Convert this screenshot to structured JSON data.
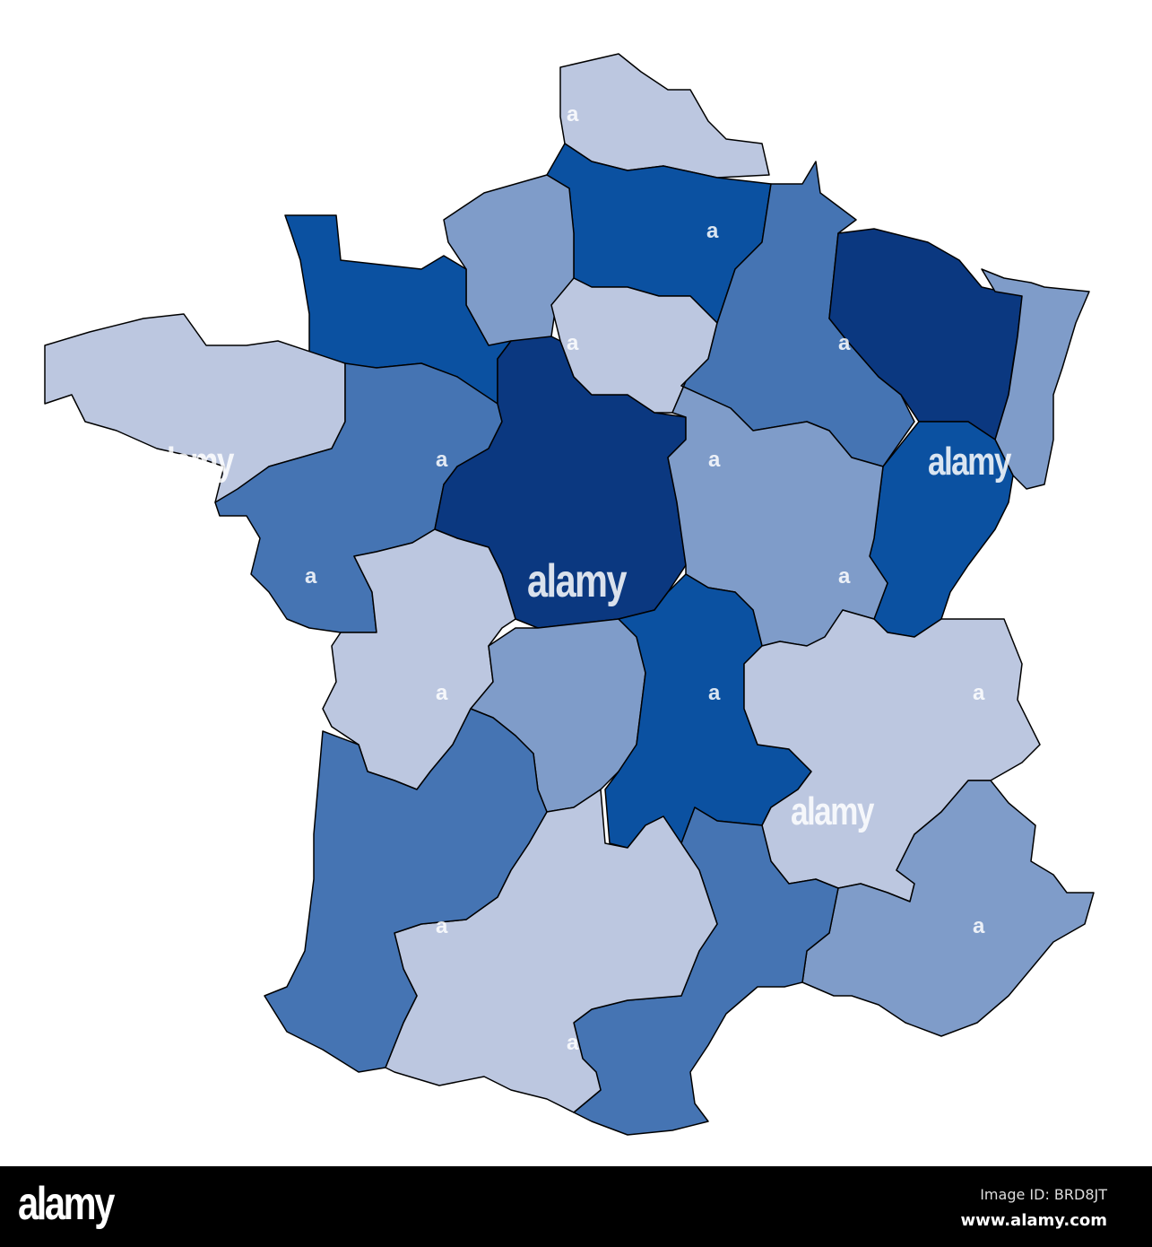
{
  "colors": {
    "light": "#bcc7e0",
    "mid": "#7f9cc9",
    "middark": "#4574b3",
    "blue": "#0b51a1",
    "dark": "#0b3880",
    "outline": "#000000"
  },
  "regions": [
    {
      "shade": "light"
    },
    {
      "shade": "blue"
    },
    {
      "shade": "mid"
    },
    {
      "shade": "blue"
    },
    {
      "shade": "light"
    },
    {
      "shade": "middark"
    },
    {
      "shade": "dark"
    },
    {
      "shade": "light"
    },
    {
      "shade": "middark"
    },
    {
      "shade": "dark"
    },
    {
      "shade": "mid"
    },
    {
      "shade": "blue"
    },
    {
      "shade": "mid"
    },
    {
      "shade": "light"
    },
    {
      "shade": "mid"
    },
    {
      "shade": "blue"
    },
    {
      "shade": "light"
    },
    {
      "shade": "mid"
    },
    {
      "shade": "middark"
    },
    {
      "shade": "light"
    },
    {
      "shade": "middark"
    }
  ],
  "watermark": {
    "text": "alamy",
    "small": "a"
  },
  "footer": {
    "logo": "alamy",
    "image_id": "Image ID: BRD8JT",
    "site": "www.alamy.com"
  }
}
